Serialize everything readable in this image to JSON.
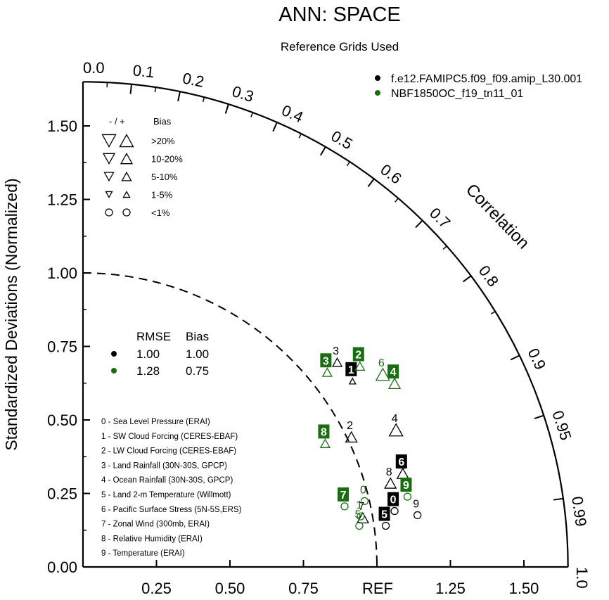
{
  "chart_data": {
    "type": "taylor",
    "title": "ANN: SPACE",
    "subtitle": "Reference Grids Used",
    "ylabel": "Standardized Deviations (Normalized)",
    "correlation_label": "Correlation",
    "ref_label": "REF",
    "xlim": [
      0,
      1.65
    ],
    "ylim": [
      0,
      1.65
    ],
    "x_ticks": [
      "0.25",
      "0.50",
      "0.75",
      "1.25",
      "1.50"
    ],
    "y_ticks": [
      "0.00",
      "0.25",
      "0.50",
      "0.75",
      "1.00",
      "1.25",
      "1.50"
    ],
    "corr_ticks": [
      "0.0",
      "0.1",
      "0.2",
      "0.3",
      "0.4",
      "0.5",
      "0.6",
      "0.7",
      "0.8",
      "0.9",
      "0.95",
      "0.99",
      "1.0"
    ],
    "colors": {
      "model1": "#000000",
      "model2": "#1a6e12"
    },
    "legend_models": [
      {
        "name": "f.e12.FAMIPC5.f09_f09.amip_L30.001",
        "color": "#000000"
      },
      {
        "name": "NBF1850OC_f19_tn11_01",
        "color": "#1a6e12"
      }
    ],
    "bias_legend": {
      "header_minus_plus": "- / +",
      "header_bias": "Bias",
      "rows": [
        {
          "label": ">20%",
          "level": 4
        },
        {
          "label": "10-20%",
          "level": 3
        },
        {
          "label": "5-10%",
          "level": 2
        },
        {
          "label": "1-5%",
          "level": 1
        },
        {
          "label": "<1%",
          "level": 0
        }
      ]
    },
    "rmse_legend": {
      "header_rmse": "RMSE",
      "header_bias": "Bias",
      "rows": [
        {
          "rmse": "1.00",
          "bias": "1.00",
          "color": "#000000"
        },
        {
          "rmse": "1.28",
          "bias": "0.75",
          "color": "#1a6e12"
        }
      ]
    },
    "variables": [
      "0 - Sea Level Pressure (ERAI)",
      "1 - SW Cloud Forcing (CERES-EBAF)",
      "2 - LW Cloud Forcing (CERES-EBAF)",
      "3 - Land Rainfall (30N-30S, GPCP)",
      "4 - Ocean Rainfall (30N-30S, GPCP)",
      "5 - Land 2-m Temperature (Willmott)",
      "6 - Pacific Surface Stress (5N-5S,ERS)",
      "7 - Zonal Wind (300mb, ERAI)",
      "8 - Relative Humidity (ERAI)",
      "9 - Temperature (ERAI)"
    ],
    "series": [
      {
        "name": "f.e12.FAMIPC5.f09_f09.amip_L30.001",
        "color": "#000000",
        "points": [
          {
            "id": "0",
            "x": 1.06,
            "y": 0.19,
            "marker": "circle",
            "level": 0,
            "boxed": true
          },
          {
            "id": "1",
            "x": 0.917,
            "y": 0.632,
            "marker": "up",
            "level": 1,
            "boxed": true
          },
          {
            "id": "2",
            "x": 0.913,
            "y": 0.442,
            "marker": "up",
            "level": 3,
            "boxed": false
          },
          {
            "id": "3",
            "x": 0.865,
            "y": 0.696,
            "marker": "up",
            "level": 2,
            "boxed": false
          },
          {
            "id": "4",
            "x": 1.065,
            "y": 0.466,
            "marker": "up",
            "level": 4,
            "boxed": false
          },
          {
            "id": "5",
            "x": 1.03,
            "y": 0.14,
            "marker": "circle",
            "level": 0,
            "boxed": true
          },
          {
            "id": "6",
            "x": 1.088,
            "y": 0.318,
            "marker": "up",
            "level": 3,
            "boxed": true
          },
          {
            "id": "7",
            "x": 0.952,
            "y": 0.167,
            "marker": "up",
            "level": 3,
            "boxed": false
          },
          {
            "id": "8",
            "x": 1.046,
            "y": 0.285,
            "marker": "up",
            "level": 3,
            "boxed": false
          },
          {
            "id": "9",
            "x": 1.138,
            "y": 0.176,
            "marker": "circle",
            "level": 0,
            "boxed": false
          }
        ]
      },
      {
        "name": "NBF1850OC_f19_tn11_01",
        "color": "#1a6e12",
        "points": [
          {
            "id": "0",
            "x": 0.958,
            "y": 0.224,
            "marker": "circle",
            "level": 0,
            "boxed": false
          },
          {
            "id": "1",
            "x": 0.945,
            "y": 0.172,
            "marker": "circle",
            "level": 0,
            "boxed": false
          },
          {
            "id": "2",
            "x": 0.942,
            "y": 0.683,
            "marker": "up",
            "level": 2,
            "boxed": true
          },
          {
            "id": "3",
            "x": 0.831,
            "y": 0.662,
            "marker": "up",
            "level": 2,
            "boxed": true
          },
          {
            "id": "4",
            "x": 1.06,
            "y": 0.624,
            "marker": "up",
            "level": 3,
            "boxed": true
          },
          {
            "id": "5",
            "x": 0.94,
            "y": 0.14,
            "marker": "circle",
            "level": 0,
            "boxed": false
          },
          {
            "id": "6",
            "x": 1.02,
            "y": 0.655,
            "marker": "up",
            "level": 4,
            "boxed": false
          },
          {
            "id": "7",
            "x": 0.89,
            "y": 0.206,
            "marker": "circle",
            "level": 0,
            "boxed": true
          },
          {
            "id": "8",
            "x": 0.824,
            "y": 0.42,
            "marker": "up",
            "level": 2,
            "boxed": true
          },
          {
            "id": "9",
            "x": 1.104,
            "y": 0.239,
            "marker": "circle",
            "level": 0,
            "boxed": true
          }
        ]
      }
    ]
  }
}
